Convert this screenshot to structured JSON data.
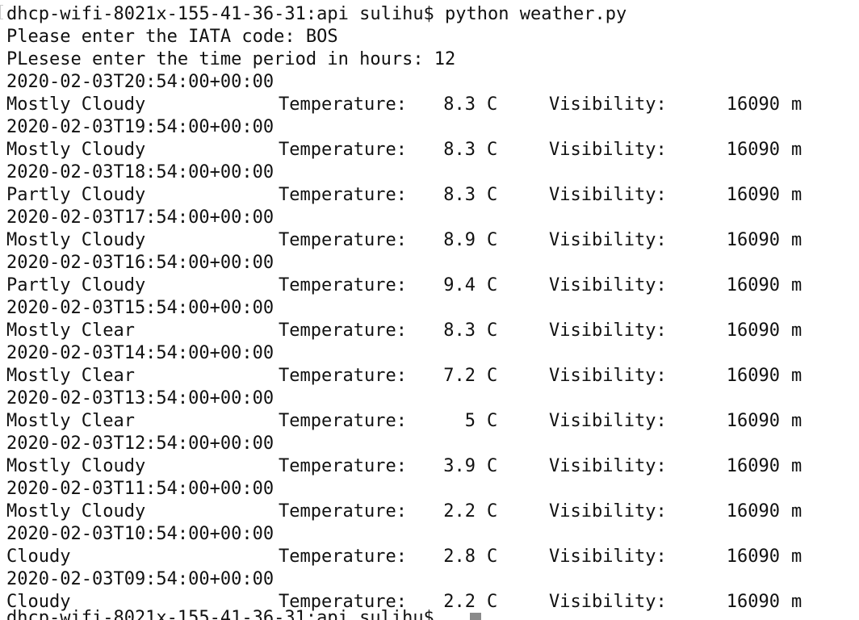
{
  "terminal": {
    "lines": [
      {
        "type": "text",
        "text": "dhcp-wifi-8021x-155-41-36-31:api sulihu$ python weather.py"
      },
      {
        "type": "text",
        "text": "Please enter the IATA code: BOS"
      },
      {
        "type": "text",
        "text": "PLesese enter the time period in hours: 12"
      },
      {
        "type": "text",
        "text": "2020-02-03T20:54:00+00:00"
      },
      {
        "type": "row",
        "condition": "Mostly Cloudy",
        "temp_label": "Temperature:",
        "temp": "8.3",
        "temp_unit": "C",
        "vis_label": "Visibility:",
        "vis": "16090",
        "vis_unit": "m"
      },
      {
        "type": "text",
        "text": "2020-02-03T19:54:00+00:00"
      },
      {
        "type": "row",
        "condition": "Mostly Cloudy",
        "temp_label": "Temperature:",
        "temp": "8.3",
        "temp_unit": "C",
        "vis_label": "Visibility:",
        "vis": "16090",
        "vis_unit": "m"
      },
      {
        "type": "text",
        "text": "2020-02-03T18:54:00+00:00"
      },
      {
        "type": "row",
        "condition": "Partly Cloudy",
        "temp_label": "Temperature:",
        "temp": "8.3",
        "temp_unit": "C",
        "vis_label": "Visibility:",
        "vis": "16090",
        "vis_unit": "m"
      },
      {
        "type": "text",
        "text": "2020-02-03T17:54:00+00:00"
      },
      {
        "type": "row",
        "condition": "Mostly Cloudy",
        "temp_label": "Temperature:",
        "temp": "8.9",
        "temp_unit": "C",
        "vis_label": "Visibility:",
        "vis": "16090",
        "vis_unit": "m"
      },
      {
        "type": "text",
        "text": "2020-02-03T16:54:00+00:00"
      },
      {
        "type": "row",
        "condition": "Partly Cloudy",
        "temp_label": "Temperature:",
        "temp": "9.4",
        "temp_unit": "C",
        "vis_label": "Visibility:",
        "vis": "16090",
        "vis_unit": "m"
      },
      {
        "type": "text",
        "text": "2020-02-03T15:54:00+00:00"
      },
      {
        "type": "row",
        "condition": "Mostly Clear",
        "temp_label": "Temperature:",
        "temp": "8.3",
        "temp_unit": "C",
        "vis_label": "Visibility:",
        "vis": "16090",
        "vis_unit": "m"
      },
      {
        "type": "text",
        "text": "2020-02-03T14:54:00+00:00"
      },
      {
        "type": "row",
        "condition": "Mostly Clear",
        "temp_label": "Temperature:",
        "temp": "7.2",
        "temp_unit": "C",
        "vis_label": "Visibility:",
        "vis": "16090",
        "vis_unit": "m"
      },
      {
        "type": "text",
        "text": "2020-02-03T13:54:00+00:00"
      },
      {
        "type": "row",
        "condition": "Mostly Clear",
        "temp_label": "Temperature:",
        "temp": "5",
        "temp_unit": "C",
        "vis_label": "Visibility:",
        "vis": "16090",
        "vis_unit": "m"
      },
      {
        "type": "text",
        "text": "2020-02-03T12:54:00+00:00"
      },
      {
        "type": "row",
        "condition": "Mostly Cloudy",
        "temp_label": "Temperature:",
        "temp": "3.9",
        "temp_unit": "C",
        "vis_label": "Visibility:",
        "vis": "16090",
        "vis_unit": "m"
      },
      {
        "type": "text",
        "text": "2020-02-03T11:54:00+00:00"
      },
      {
        "type": "row",
        "condition": "Mostly Cloudy",
        "temp_label": "Temperature:",
        "temp": "2.2",
        "temp_unit": "C",
        "vis_label": "Visibility:",
        "vis": "16090",
        "vis_unit": "m"
      },
      {
        "type": "text",
        "text": "2020-02-03T10:54:00+00:00"
      },
      {
        "type": "row",
        "condition": "Cloudy",
        "temp_label": "Temperature:",
        "temp": "2.8",
        "temp_unit": "C",
        "vis_label": "Visibility:",
        "vis": "16090",
        "vis_unit": "m"
      },
      {
        "type": "text",
        "text": "2020-02-03T09:54:00+00:00"
      },
      {
        "type": "row",
        "condition": "Cloudy",
        "temp_label": "Temperature:",
        "temp": "2.2",
        "temp_unit": "C",
        "vis_label": "Visibility:",
        "vis": "16090",
        "vis_unit": "m"
      }
    ],
    "last_prompt": "dhcp-wifi-8021x-155-41-36-31:api sulihu$ ",
    "cursor_color": "#8a8a8a"
  }
}
